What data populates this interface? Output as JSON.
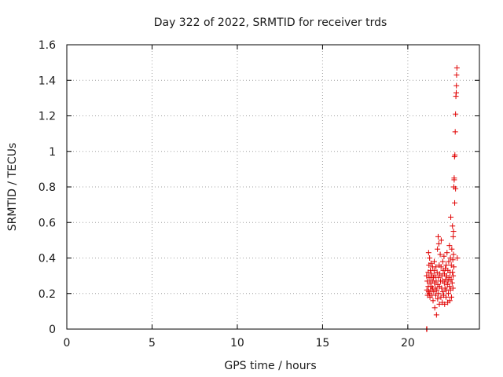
{
  "chart_data": {
    "type": "scatter",
    "title": "Day 322 of 2022, SRMTID for receiver trds",
    "xlabel": "GPS time / hours",
    "ylabel": "SRMTID / TECUs",
    "xlim": [
      0,
      24.2
    ],
    "ylim": [
      0,
      1.6
    ],
    "xticks": [
      "0",
      "5",
      "10",
      "15",
      "20"
    ],
    "xtick_values": [
      0,
      5,
      10,
      15,
      20
    ],
    "yticks": [
      "0",
      "0.2",
      "0.4",
      "0.6",
      "0.8",
      "1",
      "1.2",
      "1.4",
      "1.6"
    ],
    "ytick_values": [
      0,
      0.2,
      0.4,
      0.6,
      0.8,
      1.0,
      1.2,
      1.4,
      1.6
    ],
    "grid": true,
    "marker": "plus",
    "color": "#e00000",
    "series": [
      {
        "x": [
          21.1,
          21.12,
          21.14,
          21.16,
          21.2,
          21.2,
          21.22,
          21.22,
          21.24,
          21.25,
          21.26,
          21.28,
          21.3,
          21.3,
          21.32,
          21.34,
          21.35,
          21.36,
          21.38,
          21.4,
          21.42,
          21.44,
          21.45,
          21.46,
          21.48,
          21.5,
          21.52,
          21.54,
          21.55,
          21.56,
          21.58,
          21.6,
          21.62,
          21.64,
          21.65,
          21.66,
          21.68,
          21.7,
          21.72,
          21.74,
          21.75,
          21.76,
          21.78,
          21.8,
          21.8,
          21.82,
          21.84,
          21.85,
          21.86,
          21.88,
          21.9,
          21.92,
          21.94,
          21.95,
          21.96,
          21.98,
          22.0,
          22.02,
          22.04,
          22.05,
          22.06,
          22.08,
          22.1,
          22.12,
          22.14,
          22.15,
          22.16,
          22.18,
          22.2,
          22.22,
          22.24,
          22.25,
          22.26,
          22.28,
          22.3,
          22.32,
          22.34,
          22.35,
          22.36,
          22.38,
          22.4,
          22.42,
          22.44,
          22.45,
          22.46,
          22.48,
          22.5,
          22.5,
          22.52,
          22.54,
          22.55,
          22.56,
          22.58,
          22.6,
          22.62,
          22.62,
          22.64,
          22.65,
          22.66,
          22.66,
          22.68,
          22.68,
          22.7,
          22.7,
          22.72,
          22.72,
          22.74,
          22.75,
          22.76,
          22.78,
          22.8,
          22.8,
          22.82,
          22.84,
          22.85,
          22.86,
          22.88,
          22.9
        ],
        "y": [
          0.3,
          0.22,
          0.27,
          0.19,
          0.32,
          0.24,
          0.43,
          0.21,
          0.36,
          0.29,
          0.2,
          0.4,
          0.26,
          0.18,
          0.33,
          0.22,
          0.29,
          0.37,
          0.24,
          0.31,
          0.19,
          0.27,
          0.35,
          0.23,
          0.16,
          0.29,
          0.21,
          0.33,
          0.38,
          0.26,
          0.12,
          0.3,
          0.23,
          0.19,
          0.35,
          0.27,
          0.08,
          0.22,
          0.32,
          0.45,
          0.17,
          0.25,
          0.52,
          0.29,
          0.2,
          0.48,
          0.36,
          0.14,
          0.24,
          0.31,
          0.42,
          0.27,
          0.18,
          0.35,
          0.5,
          0.23,
          0.3,
          0.15,
          0.27,
          0.38,
          0.21,
          0.33,
          0.19,
          0.41,
          0.26,
          0.31,
          0.14,
          0.23,
          0.34,
          0.28,
          0.18,
          0.36,
          0.22,
          0.3,
          0.43,
          0.25,
          0.15,
          0.33,
          0.27,
          0.2,
          0.38,
          0.29,
          0.47,
          0.24,
          0.16,
          0.32,
          0.4,
          0.22,
          0.63,
          0.28,
          0.36,
          0.18,
          0.45,
          0.26,
          0.58,
          0.32,
          0.39,
          0.23,
          0.52,
          0.3,
          0.42,
          0.55,
          0.35,
          0.8,
          0.84,
          0.85,
          0.97,
          0.71,
          0.98,
          1.11,
          1.21,
          0.79,
          1.31,
          1.33,
          1.37,
          1.43,
          1.47,
          0.4
        ],
        "xzero": [
          21.1,
          21.12
        ],
        "yzero": [
          0.0,
          0.0
        ]
      }
    ]
  }
}
